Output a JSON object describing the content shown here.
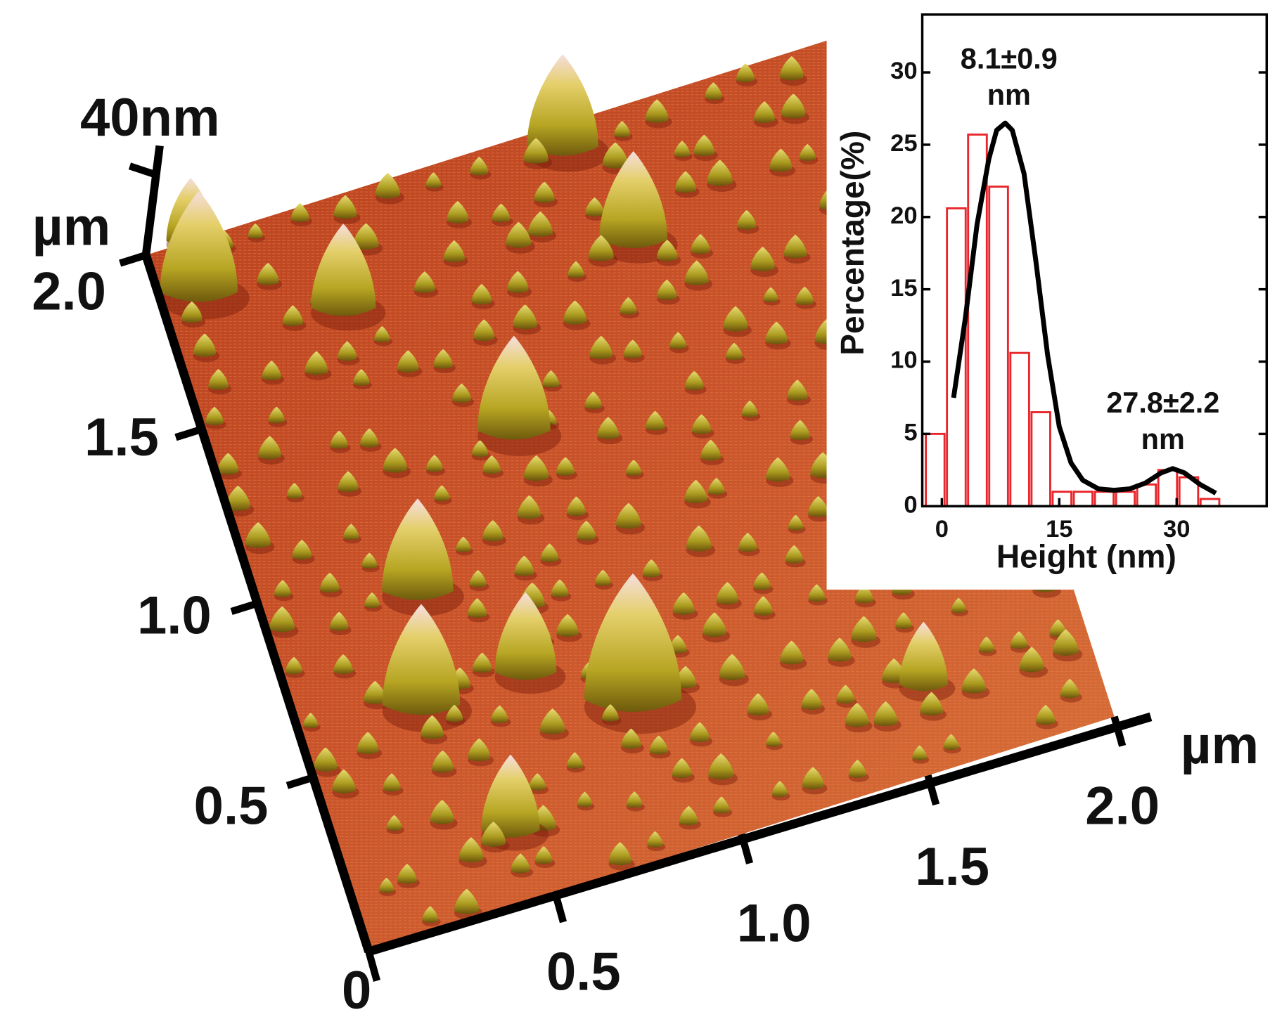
{
  "afm_image": {
    "z_scale": "40nm",
    "y_unit": "µm",
    "x_unit": "µm",
    "y_ticks": [
      "0.5",
      "1.0",
      "1.5",
      "2.0"
    ],
    "x_ticks": [
      "0",
      "0.5",
      "1.0",
      "1.5",
      "2.0"
    ]
  },
  "chart_data": {
    "type": "histogram",
    "xlabel": "Height (nm)",
    "ylabel": "Percentage(%)",
    "bins": [
      -2.2,
      0.5,
      3.2,
      5.9,
      8.6,
      11.3,
      14,
      16.7,
      19.4,
      22.1,
      24.8,
      27.5,
      30.2,
      32.9,
      35.6
    ],
    "values": [
      5,
      20.6,
      25.7,
      22.1,
      10.6,
      6.5,
      1,
      1,
      1,
      1,
      1.5,
      2.5,
      2,
      0.5
    ],
    "color": "#e8262b",
    "fit": {
      "color": "#000000",
      "x": [
        1.5,
        3,
        4.5,
        6,
        7,
        8.1,
        9,
        10.5,
        12,
        13.5,
        15,
        16.5,
        18,
        20,
        22,
        24,
        26,
        28,
        29.5,
        31,
        33,
        35
      ],
      "y": [
        7.5,
        13,
        19.5,
        24,
        26,
        26.5,
        26,
        23,
        17,
        10.5,
        5.5,
        3,
        1.8,
        1.2,
        1.1,
        1.2,
        1.6,
        2.3,
        2.6,
        2.3,
        1.5,
        0.9
      ]
    },
    "xlim": [
      -2.5,
      41.5
    ],
    "ylim": [
      0,
      34
    ],
    "xticks": [
      0,
      15,
      30
    ],
    "yticks": [
      0,
      5,
      10,
      15,
      20,
      25,
      30
    ],
    "annotations": [
      {
        "lines": [
          "8.1±0.9",
          "nm"
        ]
      },
      {
        "lines": [
          "27.8±2.2",
          "nm"
        ]
      }
    ]
  }
}
